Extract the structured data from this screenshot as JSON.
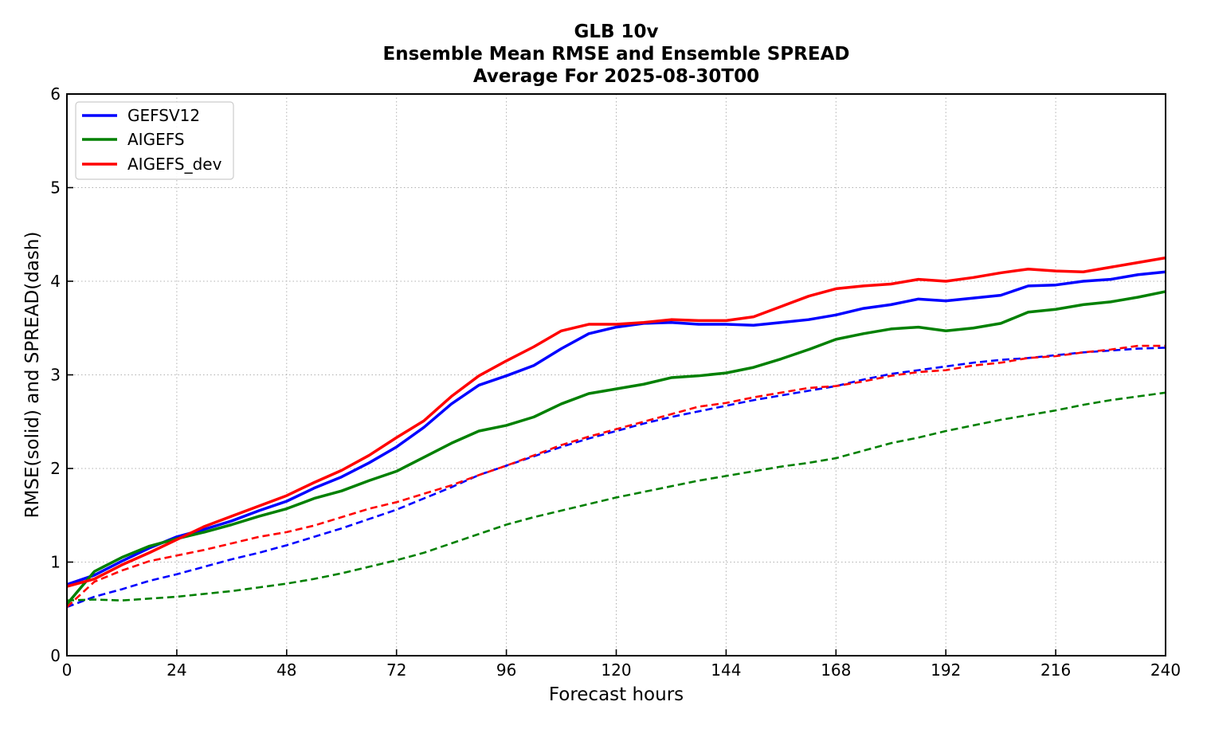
{
  "chart_data": {
    "type": "line",
    "title": [
      "GLB 10v",
      "Ensemble Mean RMSE and Ensemble SPREAD",
      "Average For 2025-08-30T00"
    ],
    "xlabel": "Forecast hours",
    "ylabel": "RMSE(solid) and SPREAD(dash)",
    "xlim": [
      0,
      240
    ],
    "ylim": [
      0,
      6
    ],
    "xticks": [
      0,
      24,
      48,
      72,
      96,
      120,
      144,
      168,
      192,
      216,
      240
    ],
    "yticks": [
      0,
      1,
      2,
      3,
      4,
      5,
      6
    ],
    "grid": true,
    "legend_position": "top-left",
    "x": [
      0,
      6,
      12,
      18,
      24,
      30,
      36,
      42,
      48,
      54,
      60,
      66,
      72,
      78,
      84,
      90,
      96,
      102,
      108,
      114,
      120,
      126,
      132,
      138,
      144,
      150,
      156,
      162,
      168,
      174,
      180,
      186,
      192,
      198,
      204,
      210,
      216,
      222,
      228,
      234,
      240
    ],
    "series": [
      {
        "name": "GEFSV12",
        "color": "#0000ff",
        "style": "solid",
        "values": [
          0.76,
          0.86,
          1.01,
          1.15,
          1.27,
          1.35,
          1.44,
          1.55,
          1.65,
          1.79,
          1.91,
          2.06,
          2.23,
          2.44,
          2.69,
          2.89,
          2.99,
          3.1,
          3.28,
          3.44,
          3.51,
          3.55,
          3.56,
          3.54,
          3.54,
          3.53,
          3.56,
          3.59,
          3.64,
          3.71,
          3.75,
          3.81,
          3.79,
          3.82,
          3.85,
          3.95,
          3.96,
          4.0,
          4.02,
          4.07,
          4.1
        ]
      },
      {
        "name": "AIGEFS",
        "color": "#008000",
        "style": "solid",
        "values": [
          0.55,
          0.9,
          1.05,
          1.17,
          1.25,
          1.32,
          1.4,
          1.49,
          1.57,
          1.68,
          1.76,
          1.87,
          1.97,
          2.12,
          2.27,
          2.4,
          2.46,
          2.55,
          2.69,
          2.8,
          2.85,
          2.9,
          2.97,
          2.99,
          3.02,
          3.08,
          3.17,
          3.27,
          3.38,
          3.44,
          3.49,
          3.51,
          3.47,
          3.5,
          3.55,
          3.67,
          3.7,
          3.75,
          3.78,
          3.83,
          3.89
        ]
      },
      {
        "name": "AIGEFS_dev",
        "color": "#ff0000",
        "style": "solid",
        "values": [
          0.74,
          0.82,
          0.97,
          1.1,
          1.24,
          1.38,
          1.49,
          1.6,
          1.71,
          1.85,
          1.98,
          2.14,
          2.33,
          2.51,
          2.77,
          2.99,
          3.15,
          3.3,
          3.47,
          3.54,
          3.54,
          3.56,
          3.59,
          3.58,
          3.58,
          3.62,
          3.73,
          3.84,
          3.92,
          3.95,
          3.97,
          4.02,
          4.0,
          4.04,
          4.09,
          4.13,
          4.11,
          4.1,
          4.15,
          4.2,
          4.25
        ]
      },
      {
        "name": "GEFSV12",
        "color": "#0000ff",
        "style": "dashed",
        "values": [
          0.52,
          0.63,
          0.71,
          0.8,
          0.87,
          0.95,
          1.03,
          1.1,
          1.18,
          1.27,
          1.36,
          1.46,
          1.56,
          1.68,
          1.8,
          1.93,
          2.03,
          2.13,
          2.23,
          2.32,
          2.4,
          2.48,
          2.55,
          2.61,
          2.67,
          2.73,
          2.78,
          2.83,
          2.88,
          2.95,
          3.01,
          3.05,
          3.09,
          3.13,
          3.16,
          3.18,
          3.21,
          3.24,
          3.26,
          3.28,
          3.29
        ]
      },
      {
        "name": "AIGEFS",
        "color": "#008000",
        "style": "dashed",
        "values": [
          0.59,
          0.6,
          0.59,
          0.61,
          0.63,
          0.66,
          0.69,
          0.73,
          0.77,
          0.82,
          0.88,
          0.95,
          1.02,
          1.1,
          1.2,
          1.3,
          1.4,
          1.48,
          1.55,
          1.62,
          1.69,
          1.75,
          1.81,
          1.87,
          1.92,
          1.97,
          2.02,
          2.06,
          2.11,
          2.19,
          2.27,
          2.33,
          2.4,
          2.46,
          2.52,
          2.57,
          2.62,
          2.68,
          2.73,
          2.77,
          2.81
        ]
      },
      {
        "name": "AIGEFS_dev",
        "color": "#ff0000",
        "style": "dashed",
        "values": [
          0.52,
          0.79,
          0.91,
          1.01,
          1.07,
          1.13,
          1.2,
          1.27,
          1.32,
          1.39,
          1.48,
          1.57,
          1.64,
          1.73,
          1.82,
          1.93,
          2.03,
          2.14,
          2.25,
          2.34,
          2.42,
          2.5,
          2.58,
          2.66,
          2.7,
          2.76,
          2.81,
          2.86,
          2.88,
          2.93,
          2.99,
          3.03,
          3.05,
          3.1,
          3.13,
          3.18,
          3.2,
          3.24,
          3.27,
          3.31,
          3.31
        ]
      }
    ],
    "legend": [
      "GEFSV12",
      "AIGEFS",
      "AIGEFS_dev"
    ]
  }
}
